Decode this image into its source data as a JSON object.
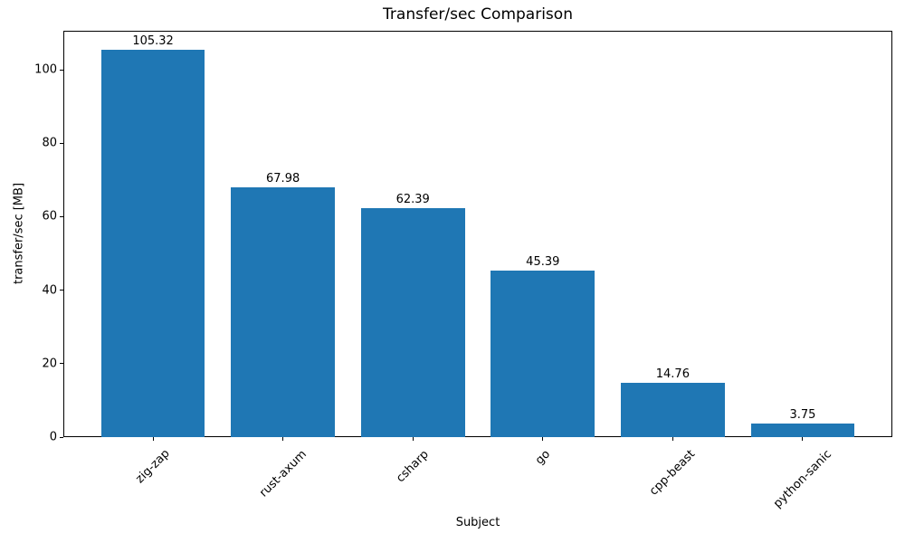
{
  "chart_data": {
    "type": "bar",
    "title": "Transfer/sec Comparison",
    "xlabel": "Subject",
    "ylabel": "transfer/sec [MB]",
    "categories": [
      "zig-zap",
      "rust-axum",
      "csharp",
      "go",
      "cpp-beast",
      "python-sanic"
    ],
    "values": [
      105.32,
      67.98,
      62.39,
      45.39,
      14.76,
      3.75
    ],
    "bar_labels": [
      "105.32",
      "67.98",
      "62.39",
      "45.39",
      "14.76",
      "3.75"
    ],
    "yticks": [
      0,
      20,
      40,
      60,
      80,
      100
    ],
    "ylim": [
      0,
      110.6
    ],
    "xlim": [
      -0.69,
      5.69
    ],
    "bar_width": 0.8,
    "bar_color": "#1f77b4",
    "text_color": "#000000",
    "grid": false,
    "legend_position": "none",
    "xtick_rotation_deg": 45
  }
}
